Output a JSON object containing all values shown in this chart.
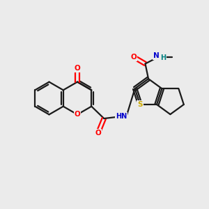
{
  "background_color": "#ebebeb",
  "bond_color": "#1a1a1a",
  "atom_colors": {
    "O": "#ff0000",
    "N": "#0000cc",
    "S": "#ccaa00",
    "H": "#008080",
    "C": "#1a1a1a"
  },
  "figsize": [
    3.0,
    3.0
  ],
  "dpi": 100,
  "xlim": [
    0,
    10
  ],
  "ylim": [
    0,
    10
  ]
}
